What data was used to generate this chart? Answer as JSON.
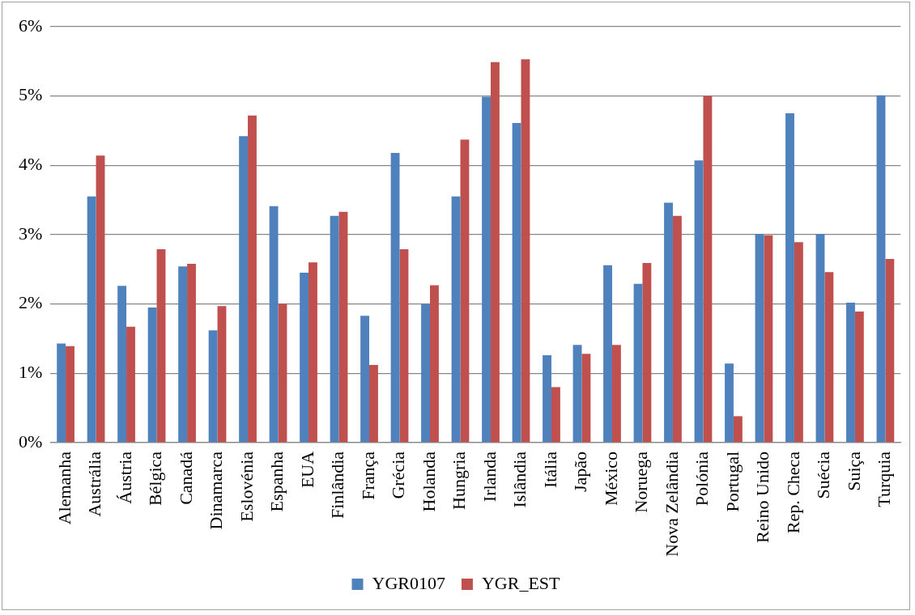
{
  "chart_data": {
    "type": "bar",
    "categories": [
      "Alemanha",
      "Austrália",
      "Áustria",
      "Bélgica",
      "Canadá",
      "Dinamarca",
      "Eslovénia",
      "Espanha",
      "EUA",
      "Finlândia",
      "França",
      "Grécia",
      "Holanda",
      "Hungria",
      "Irlanda",
      "Islândia",
      "Itália",
      "Japão",
      "México",
      "Noruega",
      "Nova Zelândia",
      "Polónia",
      "Portugal",
      "Reino Unido",
      "Rep. Checa",
      "Suécia",
      "Suiça",
      "Turquia"
    ],
    "series": [
      {
        "name": "YGR0107",
        "color": "#4f81bd",
        "values": [
          1.43,
          3.55,
          2.26,
          1.95,
          2.54,
          1.62,
          4.42,
          3.41,
          2.45,
          3.27,
          1.83,
          4.18,
          2.0,
          3.55,
          4.99,
          4.61,
          1.26,
          1.41,
          2.56,
          2.29,
          3.46,
          4.07,
          1.14,
          3.01,
          4.75,
          3.01,
          2.02,
          5.01
        ]
      },
      {
        "name": "YGR_EST",
        "color": "#c0504d",
        "values": [
          1.39,
          4.14,
          1.67,
          2.79,
          2.58,
          1.97,
          4.72,
          2.0,
          2.6,
          3.33,
          1.12,
          2.79,
          2.27,
          4.37,
          5.49,
          5.53,
          0.8,
          1.28,
          1.41,
          2.59,
          3.27,
          5.0,
          0.38,
          2.99,
          2.89,
          2.46,
          1.89,
          2.65
        ]
      }
    ],
    "ylim": [
      0,
      6
    ],
    "yticks": [
      {
        "value": 0,
        "label": "0%"
      },
      {
        "value": 1,
        "label": "1%"
      },
      {
        "value": 2,
        "label": "2%"
      },
      {
        "value": 3,
        "label": "3%"
      },
      {
        "value": 4,
        "label": "4%"
      },
      {
        "value": 5,
        "label": "5%"
      },
      {
        "value": 6,
        "label": "6%"
      }
    ],
    "grid": "y",
    "legend": "bottom"
  }
}
